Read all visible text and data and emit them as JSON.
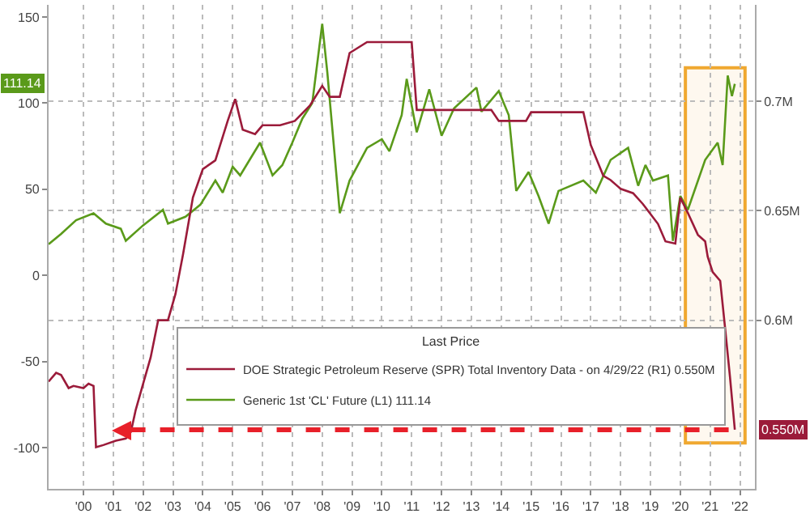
{
  "chart_data": {
    "type": "line",
    "series": [
      {
        "name": "DOE Strategic Petroleum Reserve (SPR) Total Inventory Data - on 4/29/22 (R1) 0.550M",
        "color": "#9b1b3a",
        "axis": "y2",
        "x": [
          "1999-05",
          "1999-08",
          "1999-10",
          "2000-01",
          "2000-03",
          "2000-07",
          "2000-09",
          "2000-11",
          "2000-12",
          "2001-03",
          "2001-08",
          "2001-12",
          "2002-02",
          "2002-04",
          "2002-07",
          "2002-10",
          "2003-01",
          "2003-05",
          "2003-08",
          "2003-11",
          "2004-03",
          "2004-07",
          "2004-12",
          "2005-05",
          "2005-08",
          "2005-11",
          "2006-04",
          "2006-07",
          "2007-02",
          "2007-08",
          "2008-02",
          "2008-07",
          "2008-10",
          "2009-02",
          "2009-06",
          "2010-01",
          "2011-07",
          "2011-09",
          "2014-03",
          "2014-06",
          "2015-05",
          "2015-07",
          "2017-04",
          "2017-07",
          "2017-12",
          "2018-03",
          "2018-07",
          "2018-12",
          "2019-04",
          "2019-10",
          "2020-01",
          "2020-05",
          "2020-07",
          "2020-10",
          "2021-02",
          "2021-05",
          "2021-06",
          "2021-08",
          "2021-11",
          "2022-01",
          "2022-03",
          "2022-04-29"
        ],
        "values": [
          0.572,
          0.576,
          0.575,
          0.569,
          0.57,
          0.569,
          0.571,
          0.57,
          0.542,
          0.543,
          0.545,
          0.546,
          0.549,
          0.559,
          0.571,
          0.583,
          0.6,
          0.6,
          0.612,
          0.63,
          0.656,
          0.669,
          0.673,
          0.691,
          0.701,
          0.687,
          0.685,
          0.689,
          0.689,
          0.691,
          0.698,
          0.707,
          0.702,
          0.702,
          0.722,
          0.727,
          0.727,
          0.696,
          0.696,
          0.691,
          0.691,
          0.695,
          0.695,
          0.68,
          0.666,
          0.664,
          0.66,
          0.658,
          0.653,
          0.644,
          0.636,
          0.635,
          0.656,
          0.649,
          0.639,
          0.636,
          0.629,
          0.622,
          0.618,
          0.596,
          0.574,
          0.55
        ]
      },
      {
        "name": "Generic 1st 'CL' Future (L1) 111.14",
        "color": "#5a9a1a",
        "x": [
          "1999-05",
          "1999-10",
          "2000-04",
          "2000-11",
          "2001-04",
          "2001-10",
          "2001-12",
          "2002-07",
          "2003-03",
          "2003-05",
          "2003-12",
          "2004-06",
          "2004-12",
          "2005-03",
          "2005-07",
          "2005-10",
          "2006-06",
          "2006-11",
          "2007-03",
          "2007-07",
          "2007-11",
          "2008-03",
          "2008-07",
          "2008-09",
          "2009-02",
          "2009-06",
          "2010-01",
          "2010-07",
          "2010-10",
          "2011-03",
          "2011-05",
          "2011-09",
          "2012-02",
          "2012-07",
          "2012-12",
          "2013-09",
          "2013-11",
          "2014-06",
          "2014-10",
          "2015-01",
          "2015-06",
          "2015-10",
          "2016-02",
          "2016-06",
          "2017-04",
          "2017-09",
          "2018-03",
          "2018-10",
          "2019-02",
          "2019-05",
          "2019-08",
          "2020-02",
          "2020-04",
          "2020-07",
          "2020-10",
          "2021-05",
          "2021-10",
          "2021-12",
          "2022-02",
          "2022-03-25",
          "2022-04-29"
        ],
        "values": [
          18,
          24,
          32,
          36,
          30,
          27,
          20,
          29,
          38,
          30,
          34,
          41,
          55,
          48,
          63,
          58,
          77,
          58,
          64,
          77,
          91,
          100,
          146,
          118,
          36,
          55,
          74,
          79,
          72,
          93,
          114,
          83,
          108,
          81,
          97,
          109,
          95,
          107,
          93,
          49,
          60,
          46,
          30,
          49,
          55,
          48,
          67,
          74,
          52,
          64,
          55,
          58,
          20,
          46,
          38,
          67,
          77,
          64,
          116,
          104,
          111.14
        ]
      }
    ],
    "legend_title": "Last Price",
    "legend": "bottom",
    "annotations": [
      "111.14",
      "0.550M"
    ],
    "xlim": [
      "1999-05-01",
      "2022-12-31"
    ],
    "xticks": [
      {
        "value": "2000-07-01",
        "label": "'00"
      },
      {
        "value": "2001-07-01",
        "label": "'01"
      },
      {
        "value": "2002-07-01",
        "label": "'02"
      },
      {
        "value": "2003-07-01",
        "label": "'03"
      },
      {
        "value": "2004-07-01",
        "label": "'04"
      },
      {
        "value": "2005-07-01",
        "label": "'05"
      },
      {
        "value": "2006-07-01",
        "label": "'06"
      },
      {
        "value": "2007-07-01",
        "label": "'07"
      },
      {
        "value": "2008-07-01",
        "label": "'08"
      },
      {
        "value": "2009-07-01",
        "label": "'09"
      },
      {
        "value": "2010-07-01",
        "label": "'10"
      },
      {
        "value": "2011-07-01",
        "label": "'11"
      },
      {
        "value": "2012-07-01",
        "label": "'12"
      },
      {
        "value": "2013-07-01",
        "label": "'13"
      },
      {
        "value": "2014-07-01",
        "label": "'14"
      },
      {
        "value": "2015-07-01",
        "label": "'15"
      },
      {
        "value": "2016-07-01",
        "label": "'16"
      },
      {
        "value": "2017-07-01",
        "label": "'17"
      },
      {
        "value": "2018-07-01",
        "label": "'18"
      },
      {
        "value": "2019-07-01",
        "label": "'19"
      },
      {
        "value": "2020-07-01",
        "label": "'20"
      },
      {
        "value": "2021-07-01",
        "label": "'21"
      },
      {
        "value": "2022-07-01",
        "label": "'22"
      }
    ],
    "ylim": [
      -124,
      157
    ],
    "yticks": [
      -100,
      -50,
      0,
      50,
      100,
      150
    ],
    "y2lim": [
      0.523,
      0.744
    ],
    "y2ticks": [
      {
        "value": 0.6,
        "label": "0.6M"
      },
      {
        "value": 0.65,
        "label": "0.65M"
      },
      {
        "value": 0.7,
        "label": "0.7M"
      }
    ],
    "ref_lines": [
      {
        "axis": "y2",
        "value": 0.55,
        "color": "#e8202a",
        "line_style": "dashed"
      }
    ],
    "bands": [
      {
        "axis": "x",
        "from": "2020-09",
        "to": "2022-09",
        "color": "#f0a830"
      }
    ],
    "grid": true
  }
}
